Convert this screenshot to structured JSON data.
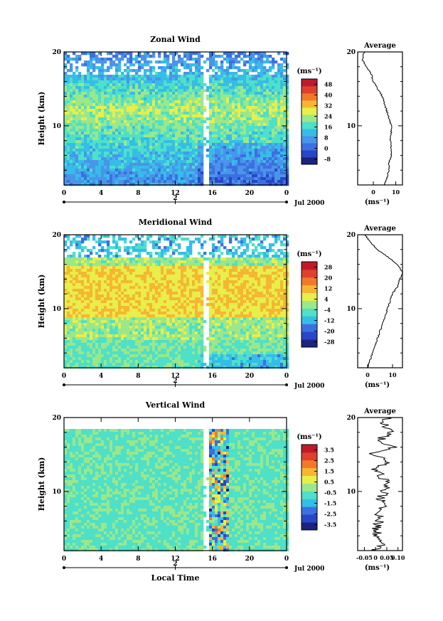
{
  "colors": {
    "zonal": [
      "#1a237e",
      "#2846c8",
      "#3d6fe0",
      "#4a94ea",
      "#35bde8",
      "#4ee0c8",
      "#9be78a",
      "#e8ee4a",
      "#f6b632",
      "#f07a28",
      "#e0402e",
      "#c01a2a"
    ],
    "meridional": [
      "#1a237e",
      "#2846c8",
      "#3d6fe0",
      "#35bde8",
      "#4ee0c8",
      "#9be78a",
      "#e8ee4a",
      "#f6b632",
      "#f07a28",
      "#e0402e",
      "#c01a2a"
    ],
    "vertical": [
      "#1a237e",
      "#2846c8",
      "#3d6fe0",
      "#35bde8",
      "#4ee0c8",
      "#9be78a",
      "#e8ee4a",
      "#f6b632",
      "#f07a28",
      "#e0402e",
      "#c01a2a"
    ]
  },
  "chart_data": [
    {
      "type": "heatmap",
      "title": "Zonal Wind",
      "xlabel": "",
      "ylabel": "Height (km)",
      "x_ticks": [
        "0",
        "4",
        "8",
        "12",
        "16",
        "20",
        "0"
      ],
      "y_ticks": [
        "10",
        "20"
      ],
      "y_range": [
        2,
        20
      ],
      "date_marker": "2",
      "date_label": "Jul 2000",
      "colorbar_unit": "(ms⁻¹)",
      "colorbar_ticks": [
        "-8",
        "0",
        "8",
        "16",
        "24",
        "32",
        "40",
        "48"
      ],
      "colorbar_range": [
        -12,
        52
      ],
      "profile": {
        "title": "Average",
        "x_ticks": [
          "0",
          "10"
        ],
        "x_range": [
          -7,
          13
        ],
        "xlabel": "(ms⁻¹)",
        "y_ticks": [
          "10",
          "20"
        ],
        "heights": [
          2,
          3,
          4,
          5,
          6,
          7,
          8,
          9,
          10,
          11,
          12,
          13,
          14,
          15,
          16,
          17,
          18,
          19,
          20
        ],
        "values": [
          5,
          6,
          7,
          7,
          8,
          8,
          7.5,
          8,
          8,
          7,
          6,
          5,
          4,
          2,
          0,
          -1,
          -3,
          -5,
          -4
        ]
      }
    },
    {
      "type": "heatmap",
      "title": "Meridional Wind",
      "xlabel": "",
      "ylabel": "Height (km)",
      "x_ticks": [
        "0",
        "4",
        "8",
        "12",
        "16",
        "20",
        "0"
      ],
      "y_ticks": [
        "10",
        "20"
      ],
      "y_range": [
        2,
        20
      ],
      "date_marker": "2",
      "date_label": "Jul 2000",
      "colorbar_unit": "(ms⁻¹)",
      "colorbar_ticks": [
        "-28",
        "-20",
        "-12",
        "-4",
        "4",
        "12",
        "20",
        "28"
      ],
      "colorbar_range": [
        -32,
        32
      ],
      "profile": {
        "title": "Average",
        "x_ticks": [
          "0",
          "10"
        ],
        "x_range": [
          -4,
          14
        ],
        "xlabel": "(ms⁻¹)",
        "y_ticks": [
          "10",
          "20"
        ],
        "heights": [
          2,
          3,
          4,
          5,
          6,
          7,
          8,
          9,
          10,
          11,
          12,
          13,
          14,
          15,
          16,
          17,
          18,
          19,
          20
        ],
        "values": [
          0,
          1,
          2,
          3,
          4,
          5,
          6,
          7,
          8,
          9,
          10,
          12,
          13,
          14,
          12,
          8,
          4,
          1,
          -1
        ]
      }
    },
    {
      "type": "heatmap",
      "title": "Vertical Wind",
      "xlabel": "Local Time",
      "ylabel": "Height (km)",
      "x_ticks": [
        "0",
        "4",
        "8",
        "12",
        "16",
        "20",
        "0"
      ],
      "y_ticks": [
        "10",
        "20"
      ],
      "y_range": [
        2,
        20
      ],
      "date_marker": "2",
      "date_label": "Jul 2000",
      "colorbar_unit": "(ms⁻¹)",
      "colorbar_ticks": [
        "-3.5",
        "-2.5",
        "-1.5",
        "-0.5",
        "0.5",
        "1.5",
        "2.5",
        "3.5"
      ],
      "colorbar_range": [
        -4,
        4
      ],
      "profile": {
        "title": "Average",
        "x_ticks": [
          "-0.05",
          "0",
          "0.05",
          "0.10"
        ],
        "x_range": [
          -0.08,
          0.12
        ],
        "xlabel": "(ms⁻¹)",
        "y_ticks": [
          "10",
          "20"
        ],
        "heights": [
          2,
          3,
          4,
          5,
          6,
          7,
          8,
          9,
          10,
          11,
          12,
          13,
          14,
          15,
          16,
          17,
          18,
          19,
          20
        ],
        "values": [
          -0.01,
          0.03,
          0.01,
          0.0,
          0.02,
          0.01,
          0.03,
          0.02,
          0.04,
          0.05,
          0.03,
          0.0,
          0.06,
          -0.02,
          0.08,
          0.02,
          0.06,
          0.04,
          0.05
        ]
      }
    }
  ]
}
